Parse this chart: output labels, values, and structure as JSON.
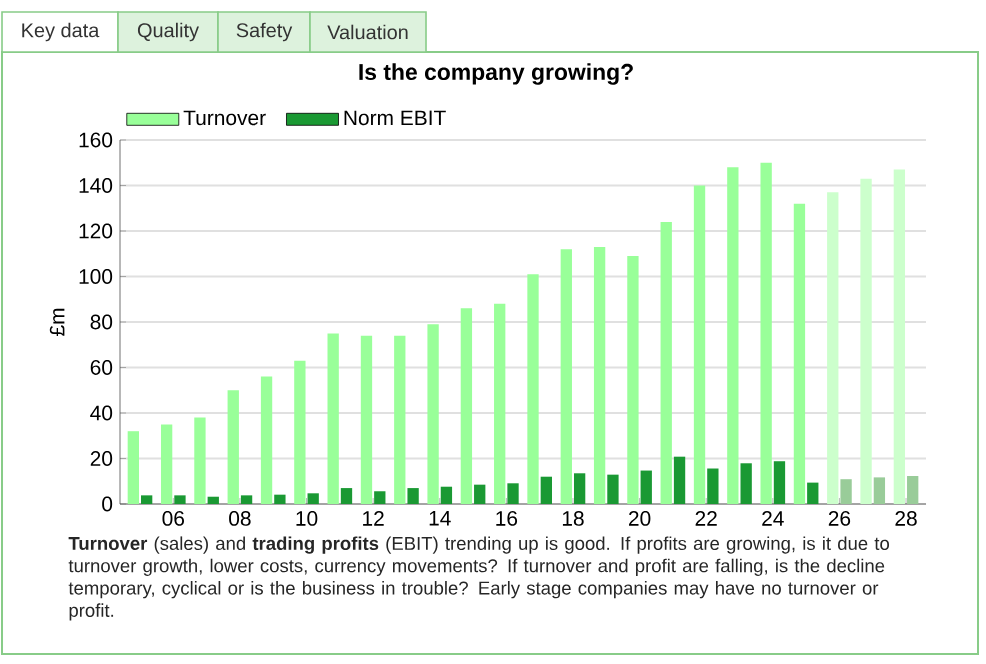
{
  "chart_data": {
    "type": "bar",
    "title": "Is the company growing?",
    "ylabel": "£m",
    "categories": [
      null,
      "06",
      null,
      "08",
      null,
      "10",
      null,
      "12",
      null,
      "14",
      null,
      "16",
      null,
      "18",
      null,
      "20",
      null,
      "22",
      null,
      "24",
      null,
      "26",
      null,
      "28"
    ],
    "series": [
      {
        "name": "Turnover",
        "color": "#99ff99",
        "colors": [
          "#99ff99",
          "#99ff99",
          "#99ff99",
          "#99ff99",
          "#99ff99",
          "#99ff99",
          "#99ff99",
          "#99ff99",
          "#99ff99",
          "#99ff99",
          "#99ff99",
          "#99ff99",
          "#99ff99",
          "#99ff99",
          "#99ff99",
          "#99ff99",
          "#99ff99",
          "#99ff99",
          "#99ff99",
          "#99ff99",
          "#99ff99",
          "#ccffcc",
          "#ccffcc",
          "#ccffcc"
        ],
        "values": [
          32,
          35,
          38,
          50,
          56,
          63,
          75,
          74,
          74,
          79,
          86,
          88,
          101,
          112,
          113,
          109,
          124,
          140,
          148,
          150,
          132,
          137,
          143,
          147
        ]
      },
      {
        "name": "Norm EBIT",
        "color": "#1a9933",
        "colors": [
          "#1a9933",
          "#1a9933",
          "#1a9933",
          "#1a9933",
          "#1a9933",
          "#1a9933",
          "#1a9933",
          "#1a9933",
          "#1a9933",
          "#1a9933",
          "#1a9933",
          "#1a9933",
          "#1a9933",
          "#1a9933",
          "#1a9933",
          "#1a9933",
          "#1a9933",
          "#1a9933",
          "#1a9933",
          "#1a9933",
          "#1a9933",
          "#99cc99",
          "#99cc99",
          "#99cc99"
        ],
        "values": [
          3.8,
          3.8,
          3.2,
          3.8,
          4.1,
          4.7,
          7,
          5.6,
          7,
          7.6,
          8.5,
          9.1,
          12,
          13.5,
          12.9,
          14.7,
          20.8,
          15.6,
          17.9,
          18.8,
          9.4,
          10.9,
          11.7,
          12.3
        ]
      }
    ],
    "ylim": [
      0,
      160
    ],
    "yticks": [
      0,
      20,
      40,
      60,
      80,
      100,
      120,
      140,
      160
    ],
    "grid": "y",
    "legend": "top left",
    "annotations": [
      "Key data",
      "Quality",
      "Safety",
      "Valuation",
      "**Turnover** (sales) and **trading profits** (EBIT) trending up is good. If profits are growing, is it due to turnover growth, lower costs, currency movements? If turnover and profit are falling, is the decline temporary, cyclical or is the business in trouble? Early stage companies may have no turnover or profit."
    ]
  }
}
